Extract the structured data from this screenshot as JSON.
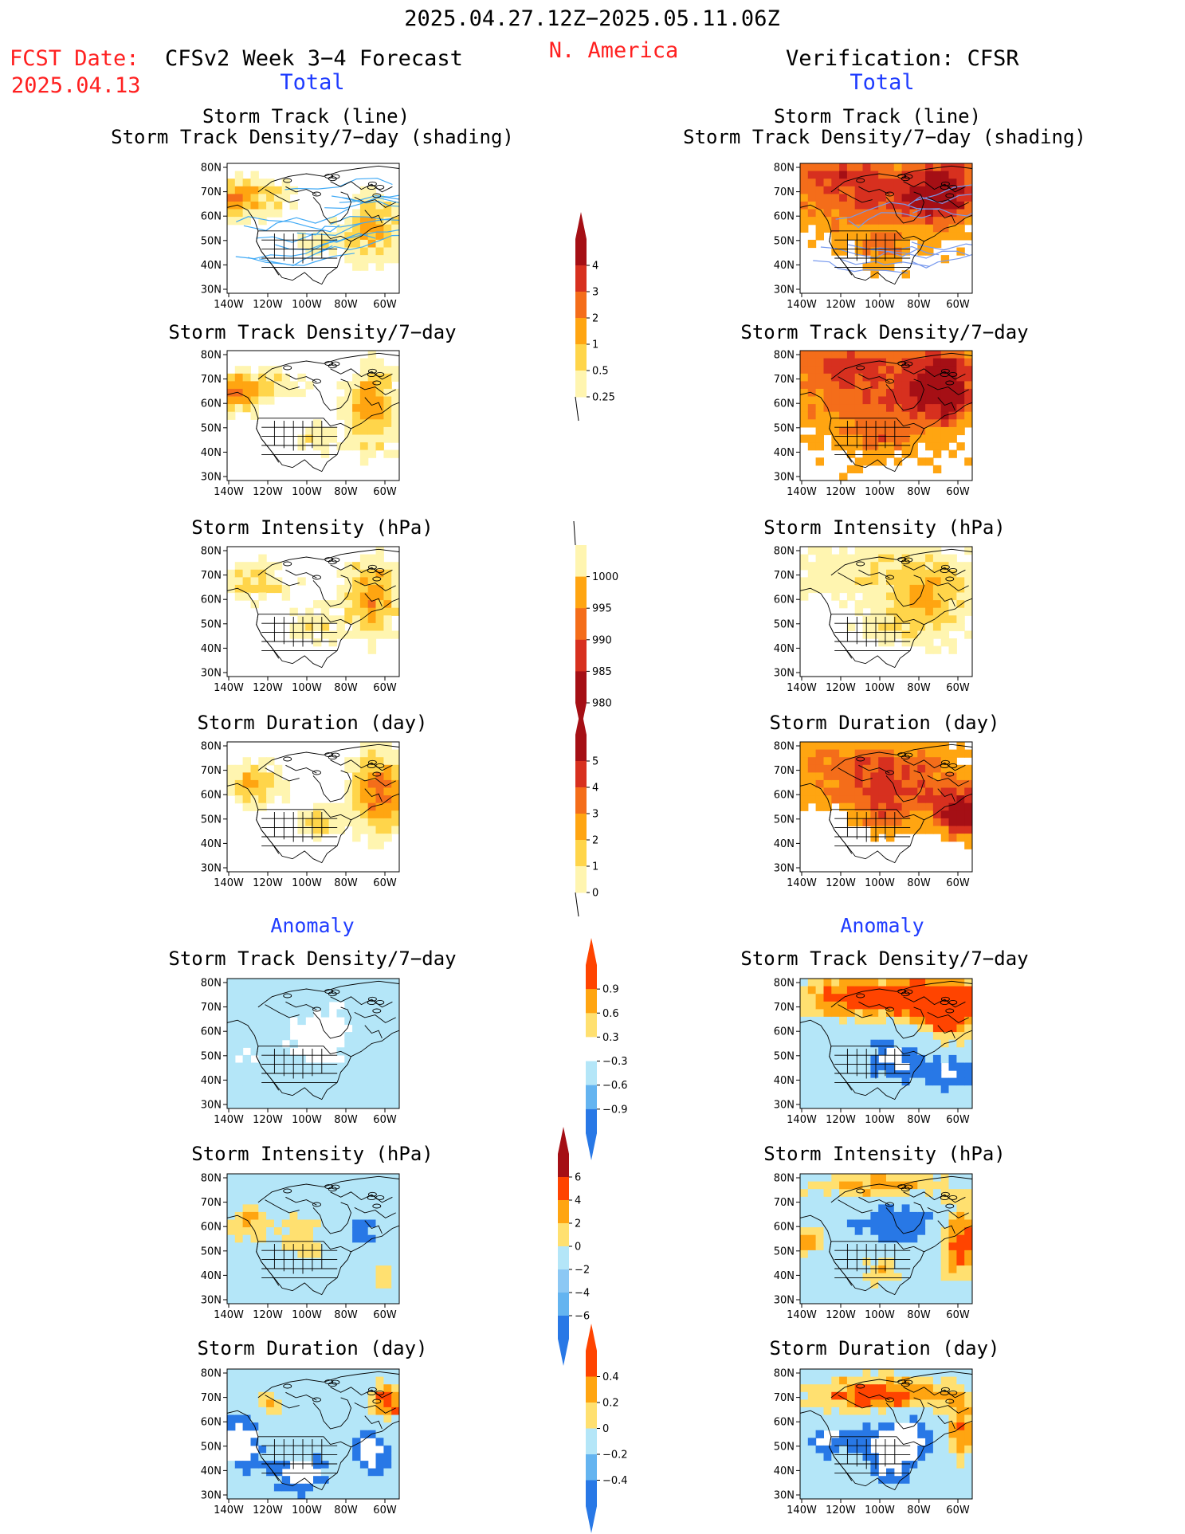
{
  "header": {
    "period": "2025.04.27.12Z−2025.05.11.06Z",
    "region": "N. America",
    "fcst_label": "FCST Date:",
    "fcst_date": "2025.04.13",
    "left_title": "CFSv2 Week 3−4 Forecast",
    "right_title": "Verification: CFSR",
    "section_total": "Total",
    "section_anomaly": "Anomaly"
  },
  "panel_titles": {
    "track1": "Storm Track (line)",
    "track2": "Storm Track Density/7−day (shading)",
    "density": "Storm Track Density/7−day",
    "intensity": "Storm Intensity (hPa)",
    "duration": "Storm Duration (day)"
  },
  "axis": {
    "lat_labels": [
      "80N",
      "70N",
      "60N",
      "50N",
      "40N",
      "30N"
    ],
    "lon_labels": [
      "140W",
      "120W",
      "100W",
      "80W",
      "60W"
    ]
  },
  "colorbars": {
    "density_total": {
      "labels": [
        "4",
        "3",
        "2",
        "1",
        "0.5",
        "0.25"
      ],
      "colors": [
        "#a50f15",
        "#d7301f",
        "#f46d1a",
        "#ffa511",
        "#ffd54a",
        "#fff5b0"
      ]
    },
    "intensity_total": {
      "labels": [
        "1000",
        "995",
        "990",
        "985",
        "980"
      ],
      "colors": [
        "#fff5b0",
        "#ffa511",
        "#f46d1a",
        "#d7301f",
        "#a50f15"
      ]
    },
    "duration_total": {
      "labels": [
        "5",
        "4",
        "3",
        "2",
        "1",
        "0"
      ],
      "colors": [
        "#a50f15",
        "#d7301f",
        "#f46d1a",
        "#ffa511",
        "#ffd54a",
        "#fff5b0"
      ]
    },
    "density_anom": {
      "labels": [
        "0.9",
        "0.6",
        "0.3",
        "−0.3",
        "−0.6",
        "−0.9"
      ],
      "colors": [
        "#ff4400",
        "#ffa511",
        "#ffe070",
        "#ffffff",
        "#b4e6f8",
        "#64b4f0",
        "#2878e6"
      ]
    },
    "intensity_anom": {
      "labels": [
        "6",
        "4",
        "2",
        "0",
        "−2",
        "−4",
        "−6"
      ],
      "colors": [
        "#a50f15",
        "#ff4400",
        "#ffa511",
        "#ffe070",
        "#b4e6f8",
        "#8cc8f4",
        "#64b4f0",
        "#2878e6"
      ]
    },
    "duration_anom": {
      "labels": [
        "0.4",
        "0.2",
        "0",
        "−0.2",
        "−0.4"
      ],
      "colors": [
        "#ff4400",
        "#ffa511",
        "#ffe070",
        "#b4e6f8",
        "#64b4f0",
        "#2878e6"
      ]
    }
  },
  "map_colors": {
    "fc_t": [
      "#fff5b0",
      "#ffd54a",
      "#ffa511",
      "#f46d1a"
    ],
    "ob_t": [
      "#ffa511",
      "#f46d1a",
      "#d7301f",
      "#a50f15"
    ],
    "anom": [
      "#2878e6",
      "#b4e6f8",
      "#ffe070",
      "#ffa511",
      "#ff4400"
    ],
    "track": "#3fa9f5",
    "land": "#000000"
  }
}
